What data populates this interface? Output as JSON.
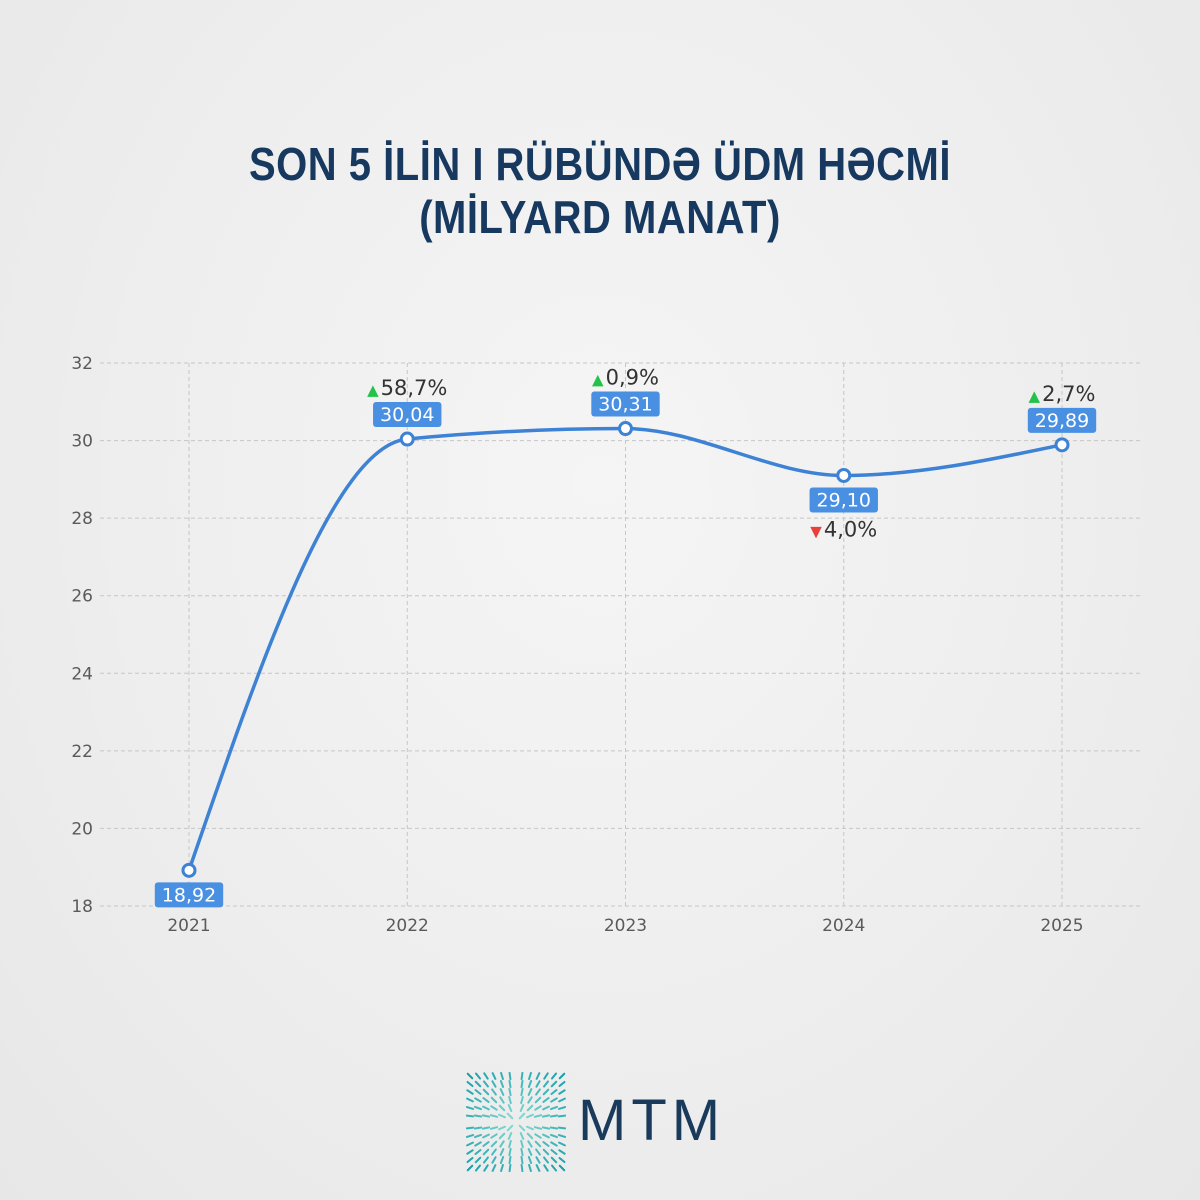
{
  "chart_data": {
    "type": "line",
    "title": "SON 5 İLİN I RÜBÜNDƏ ÜDM HƏCMİ",
    "subtitle": "(MİLYARD MANAT)",
    "categories": [
      "2021",
      "2022",
      "2023",
      "2024",
      "2025"
    ],
    "values": [
      18.92,
      30.04,
      30.31,
      29.1,
      29.89
    ],
    "data_labels": [
      "18,92",
      "30,04",
      "30,31",
      "29,10",
      "29,89"
    ],
    "data_label_position": [
      "below",
      "above",
      "above",
      "below",
      "above"
    ],
    "changes": [
      null,
      {
        "direction": "up",
        "label": "58,7%"
      },
      {
        "direction": "up",
        "label": "0,9%"
      },
      {
        "direction": "down",
        "label": "4,0%"
      },
      {
        "direction": "up",
        "label": "2,7%"
      }
    ],
    "yticks": [
      18,
      20,
      22,
      24,
      26,
      28,
      30,
      32
    ],
    "ylim": [
      18,
      32
    ],
    "grid": true,
    "legend": false,
    "curve": "smooth",
    "colors": {
      "line": "#3d82d4",
      "label_bg": "#4a90e2",
      "up": "#24c24b",
      "down": "#e8413a"
    }
  },
  "logo": {
    "text": "MTM",
    "icon": "mtm-starburst-icon",
    "text_color": "#1a3a5c",
    "icon_color_outer": "#16a0aa",
    "icon_color_inner": "#8fe0d6"
  },
  "theme": {
    "title_color": "#17385f"
  }
}
